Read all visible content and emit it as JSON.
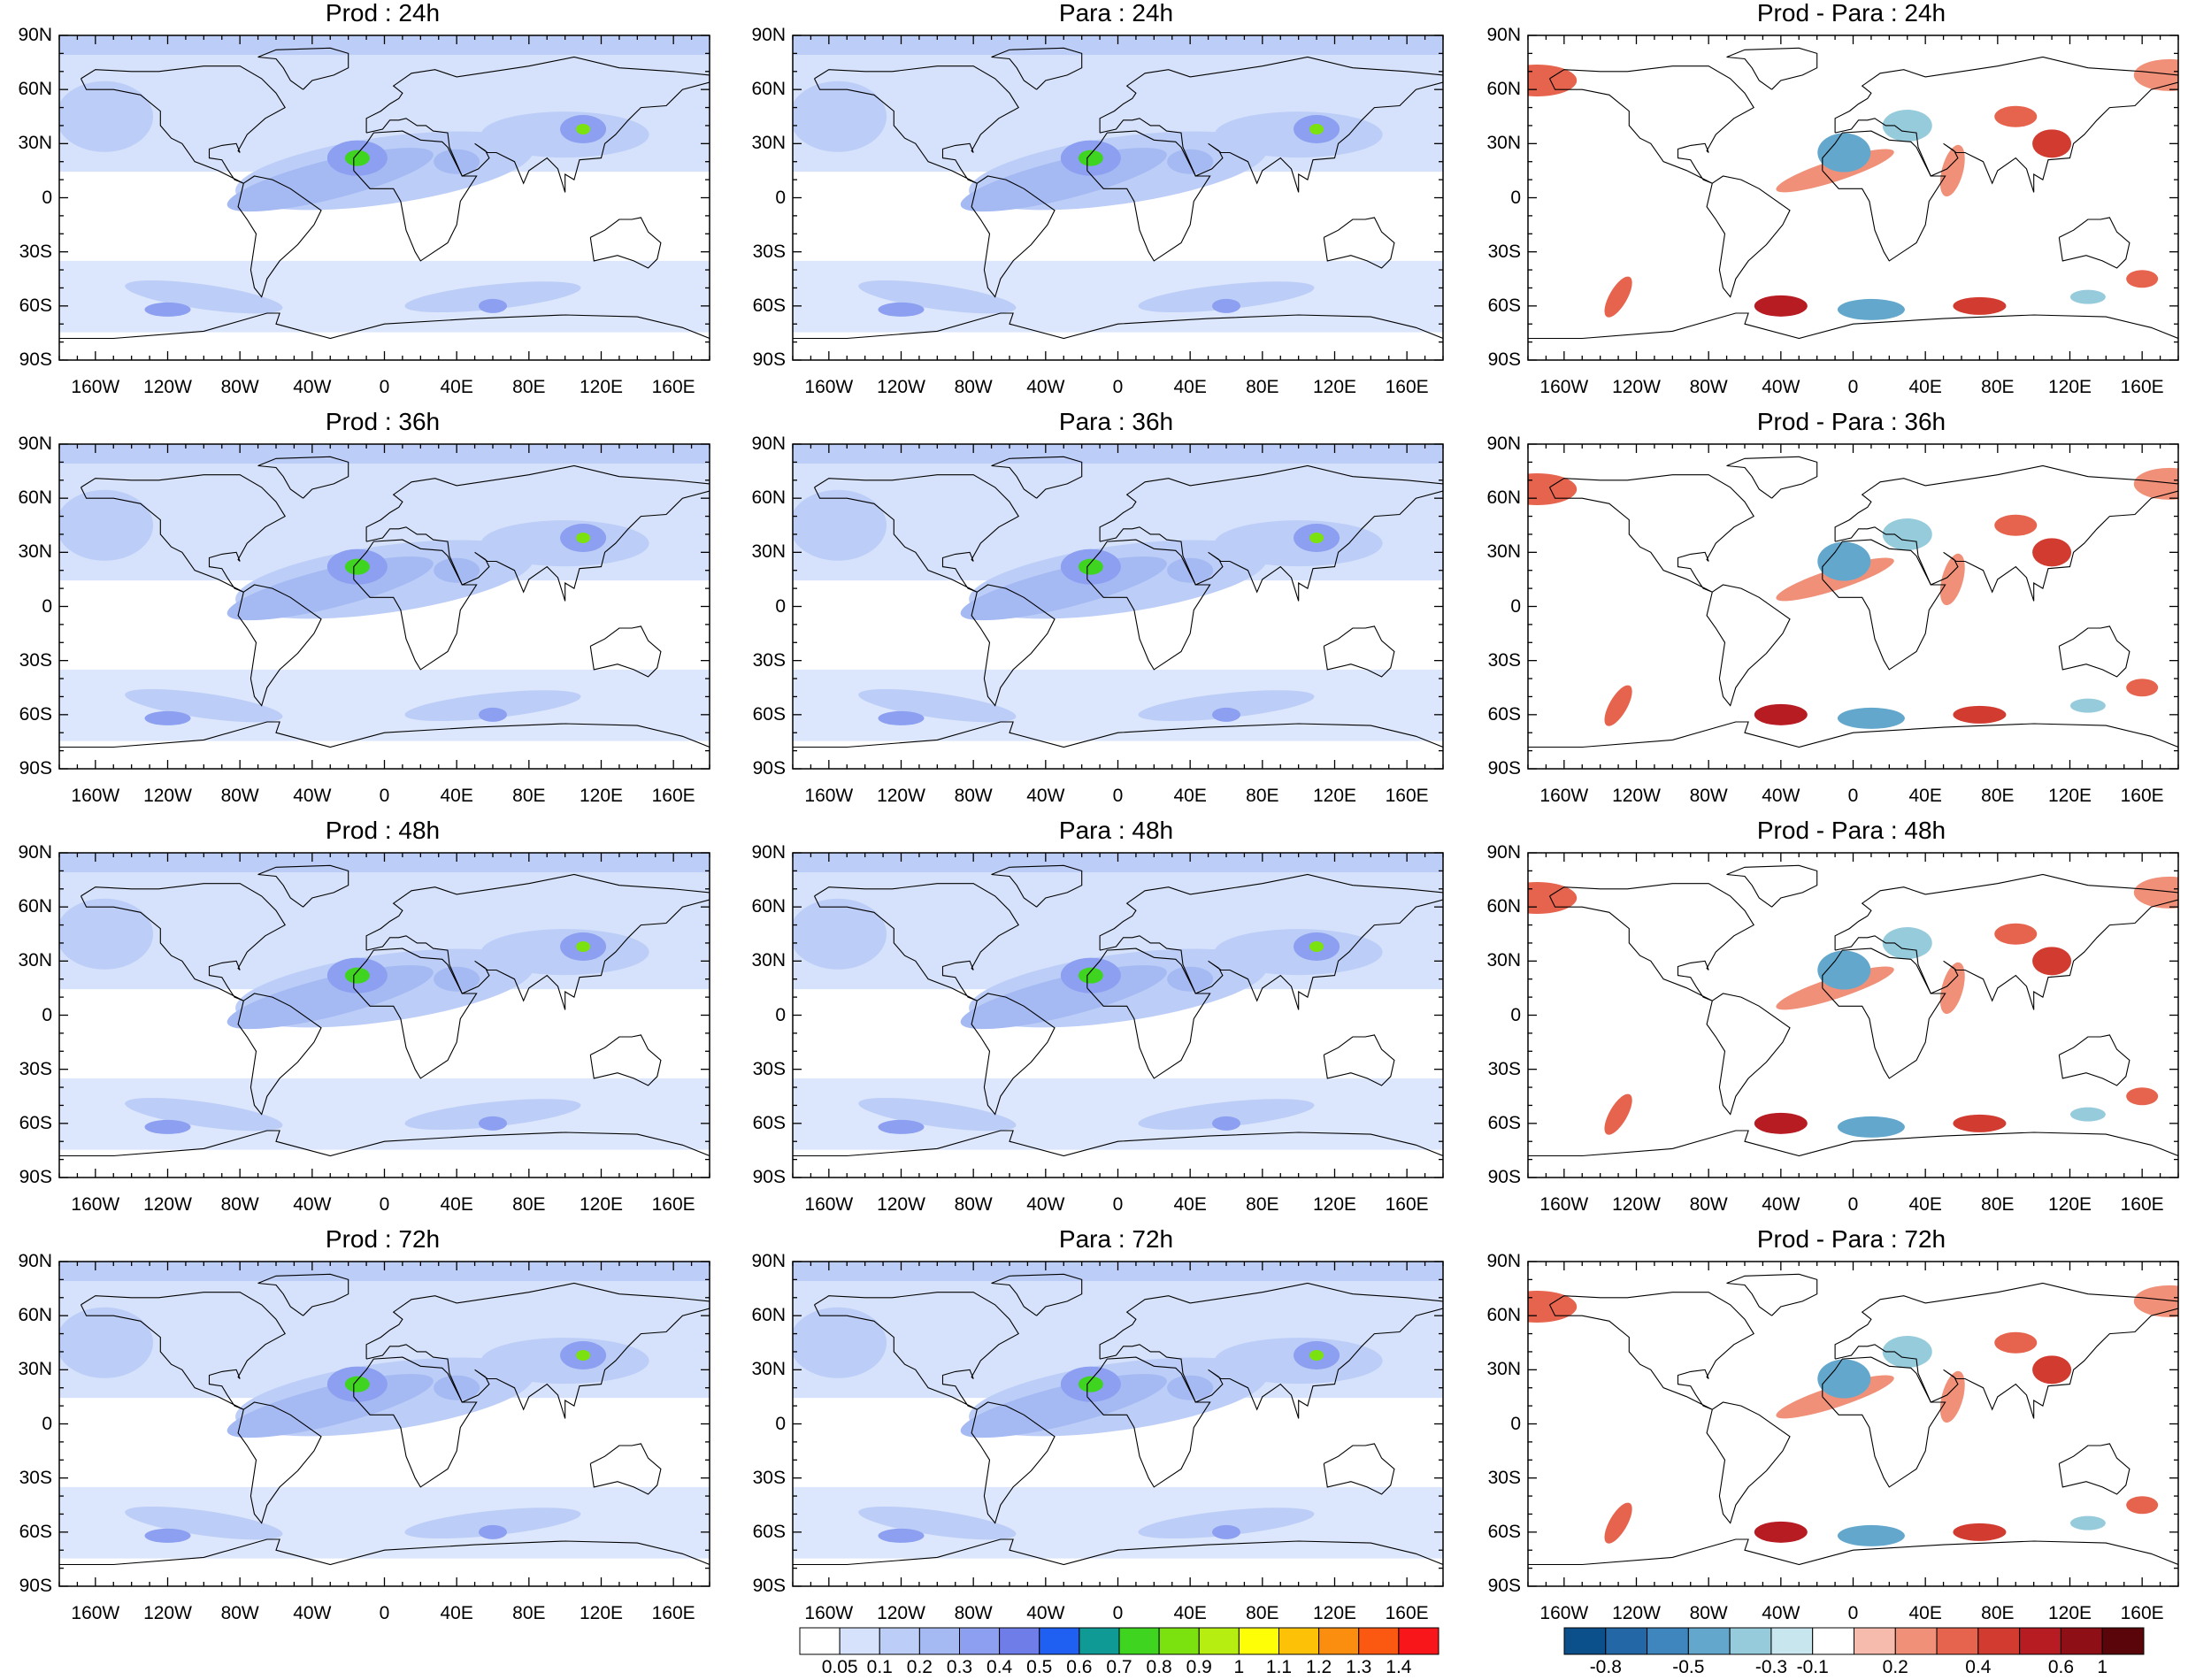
{
  "panels": [
    {
      "title": "Prod : 24h",
      "kind": "field"
    },
    {
      "title": "Para : 24h",
      "kind": "field"
    },
    {
      "title": "Prod - Para : 24h",
      "kind": "diff"
    },
    {
      "title": "Prod : 36h",
      "kind": "field"
    },
    {
      "title": "Para : 36h",
      "kind": "field"
    },
    {
      "title": "Prod - Para : 36h",
      "kind": "diff"
    },
    {
      "title": "Prod : 48h",
      "kind": "field"
    },
    {
      "title": "Para : 48h",
      "kind": "field"
    },
    {
      "title": "Prod - Para : 48h",
      "kind": "diff"
    },
    {
      "title": "Prod : 72h",
      "kind": "field"
    },
    {
      "title": "Para : 72h",
      "kind": "field"
    },
    {
      "title": "Prod - Para : 72h",
      "kind": "diff"
    }
  ],
  "lat_labels": [
    "90N",
    "60N",
    "30N",
    "0",
    "30S",
    "60S",
    "90S"
  ],
  "lon_labels": [
    "160W",
    "120W",
    "80W",
    "40W",
    "0",
    "40E",
    "80E",
    "120E",
    "160E"
  ],
  "colorbar_field": {
    "labels": [
      "0.05",
      "0.1",
      "0.2",
      "0.3",
      "0.4",
      "0.5",
      "0.6",
      "0.7",
      "0.8",
      "0.9",
      "1",
      "1.1",
      "1.2",
      "1.3",
      "1.4"
    ],
    "colors": [
      "#ffffff",
      "#d6e2fb",
      "#bccdf7",
      "#a5b9f3",
      "#8c9ff0",
      "#6f7de9",
      "#1f60f2",
      "#0f9a96",
      "#3fd420",
      "#7be20f",
      "#b5ee10",
      "#fefe06",
      "#fdc208",
      "#fc8e0f",
      "#fb5812",
      "#f9161a"
    ]
  },
  "colorbar_diff": {
    "labels": [
      "-0.8",
      "-0.5",
      "-0.3",
      "-0.1",
      "0.2",
      "0.4",
      "0.6",
      "1"
    ],
    "colors": [
      "#0b4f8b",
      "#2467a6",
      "#3e86bd",
      "#63a8cc",
      "#96cbdc",
      "#c7e6ee",
      "#ffffff",
      "#f6bbad",
      "#f09078",
      "#e6644e",
      "#d23b30",
      "#b71c23",
      "#8f0f17",
      "#5a0509"
    ]
  }
}
